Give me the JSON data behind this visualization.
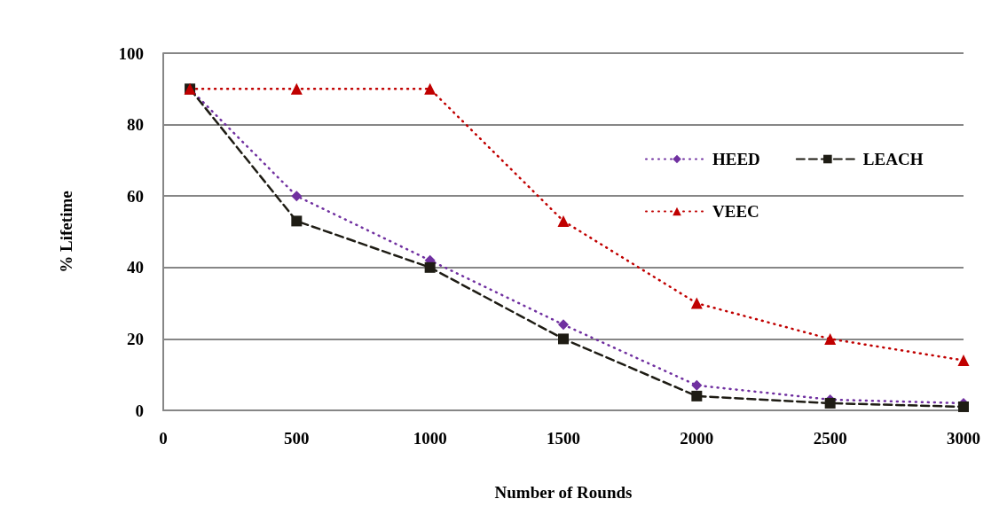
{
  "chart_data": {
    "type": "line",
    "xlabel": "Number of Rounds",
    "ylabel": "% Lifetime",
    "x": [
      100,
      500,
      1000,
      1500,
      2000,
      2500,
      3000
    ],
    "series": [
      {
        "name": "HEED",
        "color": "#7030a0",
        "marker": "diamond",
        "line_style": "dotted",
        "values": [
          90,
          60,
          42,
          24,
          7,
          3,
          2
        ]
      },
      {
        "name": "LEACH",
        "color": "#1e1c14",
        "marker": "square",
        "line_style": "dashed",
        "values": [
          90,
          53,
          40,
          20,
          4,
          2,
          1
        ]
      },
      {
        "name": "VEEC",
        "color": "#c00000",
        "marker": "triangle",
        "line_style": "dotted",
        "values": [
          90,
          90,
          90,
          53,
          30,
          20,
          14
        ]
      }
    ],
    "xlim": [
      0,
      3000
    ],
    "xticks": [
      0,
      500,
      1000,
      1500,
      2000,
      2500,
      3000
    ],
    "ylim": [
      0,
      100
    ],
    "yticks": [
      0,
      20,
      40,
      60,
      80,
      100
    ],
    "grid": "y",
    "legend": "right"
  }
}
